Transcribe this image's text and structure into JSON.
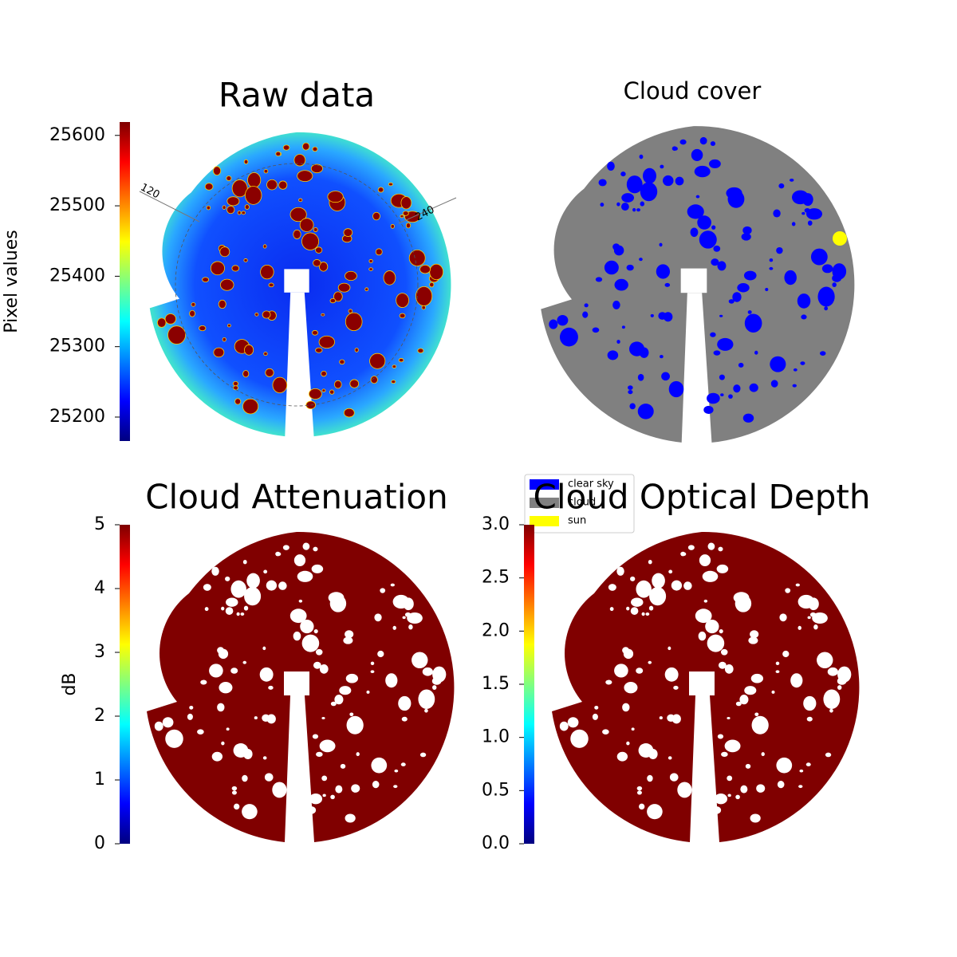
{
  "chart_data": [
    {
      "type": "image",
      "title": "Raw data",
      "colorbar_label": "Pixel values",
      "cmap": "jet",
      "fill": "#1a4cff",
      "clim": [
        25166,
        25619
      ],
      "cticks": [
        25200,
        25300,
        25400,
        25500,
        25600
      ],
      "annotations": [
        "120",
        "240"
      ]
    },
    {
      "type": "image",
      "title": "Cloud cover",
      "fill": "#808080",
      "legend": [
        {
          "label": "clear sky",
          "color": "#0000ff"
        },
        {
          "label": "cloud",
          "color": "#808080"
        },
        {
          "label": "sun",
          "color": "#ffff00"
        }
      ]
    },
    {
      "type": "image",
      "title": "Cloud Attenuation",
      "colorbar_label": "dB",
      "cmap": "jet",
      "fill": "#800000",
      "clim": [
        0,
        5
      ],
      "cticks": [
        0,
        1,
        2,
        3,
        4,
        5
      ]
    },
    {
      "type": "image",
      "title": "Cloud Optical Depth",
      "cmap": "jet",
      "fill": "#800000",
      "clim": [
        0,
        3
      ],
      "cticks": [
        {
          "value": 0,
          "label": "0.0"
        },
        0.5,
        {
          "value": 1,
          "label": "1.0"
        },
        1.5,
        {
          "value": 2,
          "label": "2.0"
        },
        2.5,
        {
          "value": 3,
          "label": "3.0"
        }
      ]
    }
  ]
}
